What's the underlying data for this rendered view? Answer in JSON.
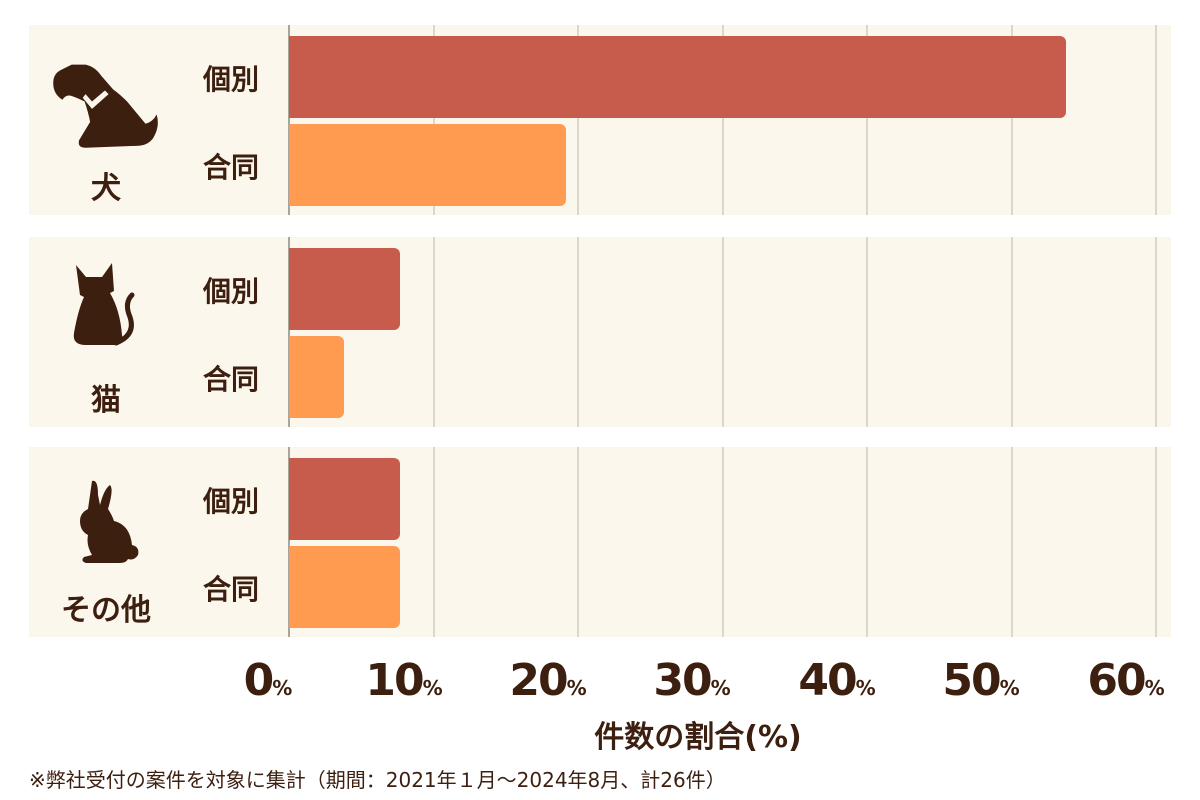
{
  "chart_data": {
    "type": "bar",
    "orientation": "horizontal",
    "title": "",
    "xlabel": "件数の割合(%)",
    "ylabel": "",
    "xlim": [
      0,
      60
    ],
    "ticks": [
      "0",
      "10",
      "20",
      "30",
      "40",
      "50",
      "60"
    ],
    "tick_suffix": "%",
    "grid": true,
    "groups": [
      {
        "name": "犬",
        "icon": "dog-icon",
        "bars": [
          {
            "label": "個別",
            "value": 53.8
          },
          {
            "label": "合同",
            "value": 19.2
          }
        ]
      },
      {
        "name": "猫",
        "icon": "cat-icon",
        "bars": [
          {
            "label": "個別",
            "value": 7.7
          },
          {
            "label": "合同",
            "value": 3.8
          }
        ]
      },
      {
        "name": "その他",
        "icon": "rabbit-icon",
        "bars": [
          {
            "label": "個別",
            "value": 7.7
          },
          {
            "label": "合同",
            "value": 7.7
          }
        ]
      }
    ],
    "series_colors": {
      "個別": "#c75c4d",
      "合同": "#ff9b50"
    },
    "footnote": "※弊社受付の案件を対象に集計（期間：2021年１月～2024年8月、計26件）"
  },
  "colors": {
    "individual": "#c75c4d",
    "joint": "#ff9b50",
    "panel_bg": "#fcf7ec",
    "text": "#3d1f10"
  }
}
